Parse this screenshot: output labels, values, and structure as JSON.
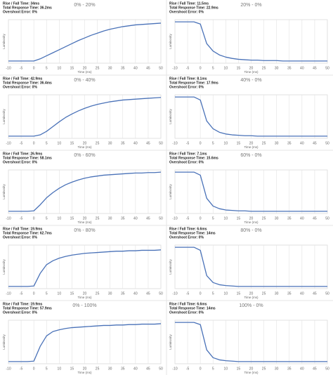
{
  "chart_data": [
    {
      "type": "line",
      "title": "0% - 20%",
      "info": [
        "Rise / Fall Time: 34ms",
        "Total Response Time: 36.2ms",
        "Overshoot Error: 0%"
      ],
      "x_label": "Time (ms)",
      "y_label": "Luminosity",
      "color": "#4a72b8",
      "grid": true,
      "xlim": [
        -10,
        50
      ],
      "xticks": [
        -10,
        -5,
        0,
        5,
        10,
        15,
        20,
        25,
        30,
        35,
        40,
        45,
        50
      ],
      "ylim": [
        0,
        100
      ],
      "x": [
        -10,
        -7.5,
        -5,
        -2.5,
        0,
        2.5,
        5,
        7.5,
        10,
        12.5,
        15,
        17.5,
        20,
        22.5,
        25,
        27.5,
        30,
        32.5,
        35,
        37.5,
        40,
        42.5,
        45,
        47.5,
        50
      ],
      "values": [
        5,
        5,
        5,
        5,
        5,
        10,
        17,
        24,
        31,
        38,
        45,
        52,
        58,
        64,
        69,
        74,
        78,
        81,
        84,
        86,
        88,
        89,
        90,
        91,
        92
      ]
    },
    {
      "type": "line",
      "title": "20% - 0%",
      "info": [
        "Rise / Fall Time: 11.5ms",
        "Total Response Time: 22.9ms",
        "Overshoot Error: 0%"
      ],
      "x_label": "Time (ms)",
      "y_label": "Luminosity",
      "color": "#4a72b8",
      "grid": true,
      "xlim": [
        -10,
        50
      ],
      "xticks": [
        -10,
        -5,
        0,
        5,
        10,
        15,
        20,
        25,
        30,
        35,
        40,
        45,
        50
      ],
      "ylim": [
        0,
        100
      ],
      "x": [
        -10,
        -7.5,
        -5,
        -2.5,
        0,
        2.5,
        5,
        7.5,
        10,
        12.5,
        15,
        17.5,
        20,
        22.5,
        25,
        27.5,
        30,
        32.5,
        35,
        37.5,
        40,
        42.5,
        45,
        47.5,
        50
      ],
      "values": [
        95,
        95,
        95,
        95,
        90,
        45,
        28,
        19,
        14,
        11,
        9,
        8,
        7,
        7,
        6,
        6,
        6,
        5,
        5,
        5,
        5,
        5,
        5,
        5,
        5
      ]
    },
    {
      "type": "line",
      "title": "0% - 40%",
      "info": [
        "Rise / Fall Time: 42.9ms",
        "Total Response Time: 36.4ms",
        "Overshoot Error: 0%"
      ],
      "x_label": "Time (ms)",
      "y_label": "Luminosity",
      "color": "#4a72b8",
      "grid": true,
      "xlim": [
        -10,
        50
      ],
      "xticks": [
        -10,
        -5,
        0,
        5,
        10,
        15,
        20,
        25,
        30,
        35,
        40,
        45,
        50
      ],
      "ylim": [
        0,
        100
      ],
      "x": [
        -10,
        -7.5,
        -5,
        -2.5,
        0,
        2.5,
        5,
        7.5,
        10,
        12.5,
        15,
        17.5,
        20,
        22.5,
        25,
        27.5,
        30,
        32.5,
        35,
        37.5,
        40,
        42.5,
        45,
        47.5,
        50
      ],
      "values": [
        5,
        5,
        5,
        5,
        5,
        8,
        16,
        27,
        38,
        48,
        56,
        63,
        69,
        74,
        78,
        81,
        84,
        86,
        88,
        89,
        90,
        91,
        92,
        93,
        94
      ]
    },
    {
      "type": "line",
      "title": "40% - 0%",
      "info": [
        "Rise / Fall Time: 8.1ms",
        "Total Response Time: 17.9ms",
        "Overshoot Error: 0%"
      ],
      "x_label": "Time (ms)",
      "y_label": "Luminosity",
      "color": "#4a72b8",
      "grid": true,
      "xlim": [
        -10,
        50
      ],
      "xticks": [
        -10,
        -5,
        0,
        5,
        10,
        15,
        20,
        25,
        30,
        35,
        40,
        45,
        50
      ],
      "ylim": [
        0,
        100
      ],
      "x": [
        -10,
        -7.5,
        -5,
        -2.5,
        0,
        2.5,
        5,
        7.5,
        10,
        12.5,
        15,
        17.5,
        20,
        22.5,
        25,
        27.5,
        30,
        32.5,
        35,
        37.5,
        40,
        42.5,
        45,
        47.5,
        50
      ],
      "values": [
        95,
        95,
        95,
        95,
        88,
        40,
        22,
        14,
        10,
        8,
        7,
        6,
        6,
        5,
        5,
        5,
        5,
        5,
        5,
        5,
        5,
        5,
        5,
        5,
        5
      ]
    },
    {
      "type": "line",
      "title": "0% - 60%",
      "info": [
        "Rise / Fall Time: 26.9ms",
        "Total Response Time: 58.1ms",
        "Overshoot Error: 0%"
      ],
      "x_label": "Time (ms)",
      "y_label": "Luminosity",
      "color": "#4a72b8",
      "grid": true,
      "xlim": [
        -10,
        50
      ],
      "xticks": [
        -10,
        -5,
        0,
        5,
        10,
        15,
        20,
        25,
        30,
        35,
        40,
        45,
        50
      ],
      "ylim": [
        0,
        100
      ],
      "x": [
        -10,
        -7.5,
        -5,
        -2.5,
        0,
        2.5,
        5,
        7.5,
        10,
        12.5,
        15,
        17.5,
        20,
        22.5,
        25,
        27.5,
        30,
        32.5,
        35,
        37.5,
        40,
        42.5,
        45,
        47.5,
        50
      ],
      "values": [
        5,
        5,
        5,
        5,
        6,
        20,
        36,
        48,
        58,
        66,
        72,
        77,
        81,
        84,
        86,
        88,
        89,
        90,
        91,
        92,
        93,
        93,
        94,
        94,
        95
      ]
    },
    {
      "type": "line",
      "title": "60% - 0%",
      "info": [
        "Rise / Fall Time: 7.1ms",
        "Total Response Time: 15.6ms",
        "Overshoot Error: 0%"
      ],
      "x_label": "Time (ms)",
      "y_label": "Luminosity",
      "color": "#4a72b8",
      "grid": true,
      "xlim": [
        -10,
        50
      ],
      "xticks": [
        -10,
        -5,
        0,
        5,
        10,
        15,
        20,
        25,
        30,
        35,
        40,
        45,
        50
      ],
      "ylim": [
        0,
        100
      ],
      "x": [
        -10,
        -7.5,
        -5,
        -2.5,
        0,
        2.5,
        5,
        7.5,
        10,
        12.5,
        15,
        17.5,
        20,
        22.5,
        25,
        27.5,
        30,
        32.5,
        35,
        37.5,
        40,
        42.5,
        45,
        47.5,
        50
      ],
      "values": [
        95,
        95,
        95,
        95,
        88,
        35,
        17,
        11,
        8,
        7,
        6,
        6,
        5,
        5,
        5,
        5,
        5,
        5,
        5,
        5,
        5,
        5,
        5,
        5,
        5
      ]
    },
    {
      "type": "line",
      "title": "0% - 80%",
      "info": [
        "Rise / Fall Time: 19.9ms",
        "Total Response Time: 62.7ms",
        "Overshoot Error: 0%"
      ],
      "x_label": "Time (ms)",
      "y_label": "Luminosity",
      "color": "#4a72b8",
      "grid": true,
      "xlim": [
        -10,
        50
      ],
      "xticks": [
        -10,
        -5,
        0,
        5,
        10,
        15,
        20,
        25,
        30,
        35,
        40,
        45,
        50
      ],
      "ylim": [
        0,
        100
      ],
      "x": [
        -10,
        -7.5,
        -5,
        -2.5,
        0,
        2.5,
        5,
        7.5,
        10,
        12.5,
        15,
        17.5,
        20,
        22.5,
        25,
        27.5,
        30,
        32.5,
        35,
        37.5,
        40,
        42.5,
        45,
        47.5,
        50
      ],
      "values": [
        5,
        5,
        5,
        5,
        6,
        35,
        55,
        64,
        70,
        74,
        77,
        79,
        81,
        82,
        83,
        84,
        85,
        86,
        86,
        87,
        87,
        88,
        88,
        88,
        89
      ]
    },
    {
      "type": "line",
      "title": "80% - 0%",
      "info": [
        "Rise / Fall Time: 6.6ms",
        "Total Response Time: 14ms",
        "Overshoot Error: 0%"
      ],
      "x_label": "Time (ms)",
      "y_label": "Luminosity",
      "color": "#4a72b8",
      "grid": true,
      "xlim": [
        -10,
        50
      ],
      "xticks": [
        -10,
        -5,
        0,
        5,
        10,
        15,
        20,
        25,
        30,
        35,
        40,
        45,
        50
      ],
      "ylim": [
        0,
        100
      ],
      "x": [
        -10,
        -7.5,
        -5,
        -2.5,
        0,
        2.5,
        5,
        7.5,
        10,
        12.5,
        15,
        17.5,
        20,
        22.5,
        25,
        27.5,
        30,
        32.5,
        35,
        37.5,
        40,
        42.5,
        45,
        47.5,
        50
      ],
      "values": [
        95,
        95,
        95,
        95,
        88,
        30,
        14,
        9,
        7,
        6,
        5,
        5,
        5,
        5,
        5,
        5,
        5,
        5,
        5,
        5,
        5,
        5,
        5,
        5,
        5
      ]
    },
    {
      "type": "line",
      "title": "0% - 100%",
      "info": [
        "Rise / Fall Time: 19.9ms",
        "Total Response Time: 57.9ms",
        "Overshoot Error: 0%"
      ],
      "x_label": "Time (ms)",
      "y_label": "Luminosity",
      "color": "#4a72b8",
      "grid": true,
      "xlim": [
        -10,
        50
      ],
      "xticks": [
        -10,
        -5,
        0,
        5,
        10,
        15,
        20,
        25,
        30,
        35,
        40,
        45,
        50
      ],
      "ylim": [
        0,
        100
      ],
      "x": [
        -10,
        -7.5,
        -5,
        -2.5,
        0,
        2.5,
        5,
        7.5,
        10,
        12.5,
        15,
        17.5,
        20,
        22.5,
        25,
        27.5,
        30,
        32.5,
        35,
        37.5,
        40,
        42.5,
        45,
        47.5,
        50
      ],
      "values": [
        5,
        5,
        5,
        5,
        6,
        40,
        64,
        74,
        78,
        81,
        83,
        84,
        85,
        86,
        87,
        88,
        88,
        89,
        89,
        90,
        90,
        91,
        91,
        91,
        92
      ]
    },
    {
      "type": "line",
      "title": "100% - 0%",
      "info": [
        "Rise / Fall Time: 6.6ms",
        "Total Response Time: 14ms",
        "Overshoot Error: 0%"
      ],
      "x_label": "Time (ms)",
      "y_label": "Luminosity",
      "color": "#4a72b8",
      "grid": true,
      "xlim": [
        -10,
        50
      ],
      "xticks": [
        -10,
        -5,
        0,
        5,
        10,
        15,
        20,
        25,
        30,
        35,
        40,
        45,
        50
      ],
      "ylim": [
        0,
        100
      ],
      "x": [
        -10,
        -7.5,
        -5,
        -2.5,
        0,
        2.5,
        5,
        7.5,
        10,
        12.5,
        15,
        17.5,
        20,
        22.5,
        25,
        27.5,
        30,
        32.5,
        35,
        37.5,
        40,
        42.5,
        45,
        47.5,
        50
      ],
      "values": [
        95,
        95,
        95,
        95,
        90,
        32,
        14,
        9,
        7,
        6,
        5,
        5,
        5,
        5,
        5,
        5,
        5,
        5,
        5,
        5,
        5,
        5,
        5,
        5,
        5
      ]
    }
  ]
}
